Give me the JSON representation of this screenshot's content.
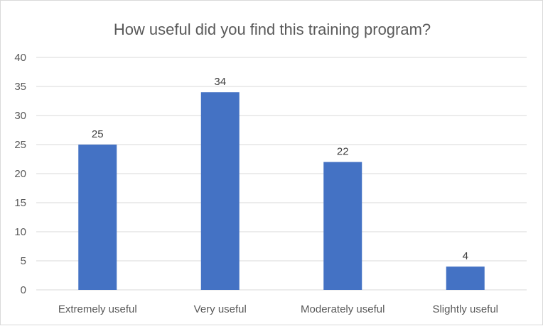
{
  "chart_data": {
    "type": "bar",
    "title": "How useful did  you find this training program?",
    "categories": [
      "Extremely useful",
      "Very useful",
      "Moderately useful",
      "Slightly useful"
    ],
    "values": [
      25,
      34,
      22,
      4
    ],
    "ylim": [
      0,
      40
    ],
    "yticks": [
      "0",
      "5",
      "10",
      "15",
      "20",
      "25",
      "30",
      "35",
      "40"
    ],
    "data_labels": [
      "25",
      "34",
      "22",
      "4"
    ],
    "grid": true,
    "legend": "none",
    "bar_color": "#4472c4"
  }
}
